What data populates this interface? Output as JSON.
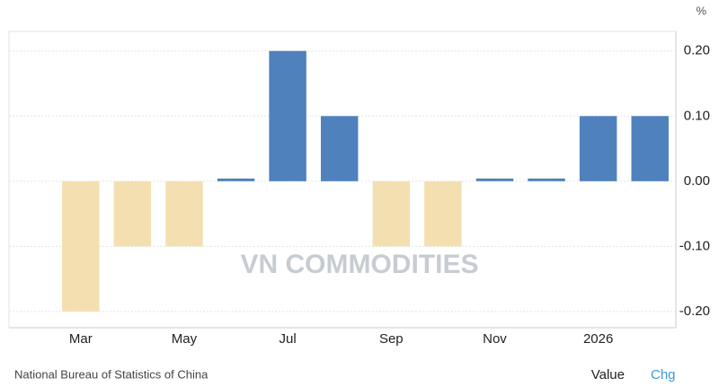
{
  "chart_data": {
    "type": "bar",
    "unit": "%",
    "categories": [
      "Mar",
      null,
      "May",
      null,
      "Jul",
      null,
      "Sep",
      null,
      "Nov",
      null,
      "2026",
      null
    ],
    "values": [
      -0.2,
      -0.1,
      -0.1,
      0.0,
      0.2,
      0.1,
      -0.1,
      -0.1,
      0.0,
      0.0,
      0.1,
      0.1
    ],
    "positive_color": "#4f81bd",
    "negative_color": "#f4dfb1",
    "ylim": [
      -0.225,
      0.23
    ],
    "yticks": [
      {
        "value": 0.2,
        "label": "0.20"
      },
      {
        "value": 0.1,
        "label": "0.10"
      },
      {
        "value": 0,
        "label": "0.00"
      },
      {
        "value": -0.1,
        "label": "-0.10"
      },
      {
        "value": -0.2,
        "label": "-0.20"
      }
    ],
    "grid": true,
    "watermark": "VN COMMODITIES",
    "source": "National Bureau of Statistics of China",
    "toggles": [
      "Value",
      "Chg"
    ]
  }
}
